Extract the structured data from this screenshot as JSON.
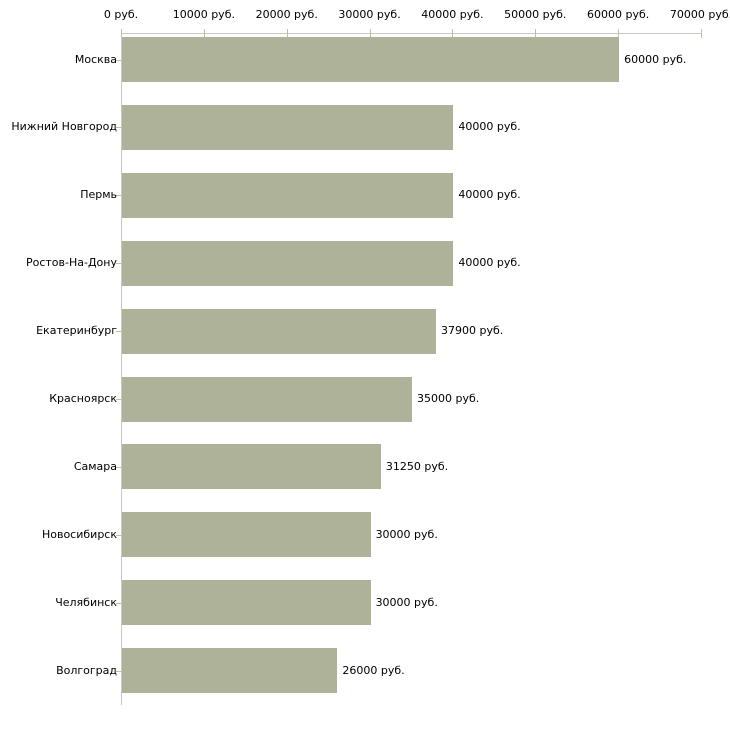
{
  "page": {
    "background": "#ffffff"
  },
  "chart_data": {
    "type": "bar",
    "orientation": "horizontal",
    "title": "",
    "unit": "руб.",
    "categories": [
      "Москва",
      "Нижний Новгород",
      "Пермь",
      "Ростов-На-Дону",
      "Екатеринбург",
      "Красноярск",
      "Самара",
      "Новосибирск",
      "Челябинск",
      "Волгоград"
    ],
    "values": [
      60000,
      40000,
      40000,
      40000,
      37900,
      35000,
      31250,
      30000,
      30000,
      26000
    ],
    "value_labels": [
      "60000 руб.",
      "40000 руб.",
      "40000 руб.",
      "40000 руб.",
      "37900 руб.",
      "35000 руб.",
      "31250 руб.",
      "30000 руб.",
      "30000 руб.",
      "26000 руб."
    ],
    "x_ticks": [
      0,
      10000,
      20000,
      30000,
      40000,
      50000,
      60000,
      70000
    ],
    "x_tick_labels": [
      "0 руб.",
      "10000 руб.",
      "20000 руб.",
      "30000 руб.",
      "40000 руб.",
      "50000 руб.",
      "60000 руб.",
      "70000 руб."
    ],
    "xlim": [
      0,
      70000
    ],
    "grid": false,
    "legend": false,
    "colors": {
      "bar": "#adb298",
      "tick": "#bfc396",
      "axis": "#c8c8c8",
      "text": "#000000"
    }
  }
}
